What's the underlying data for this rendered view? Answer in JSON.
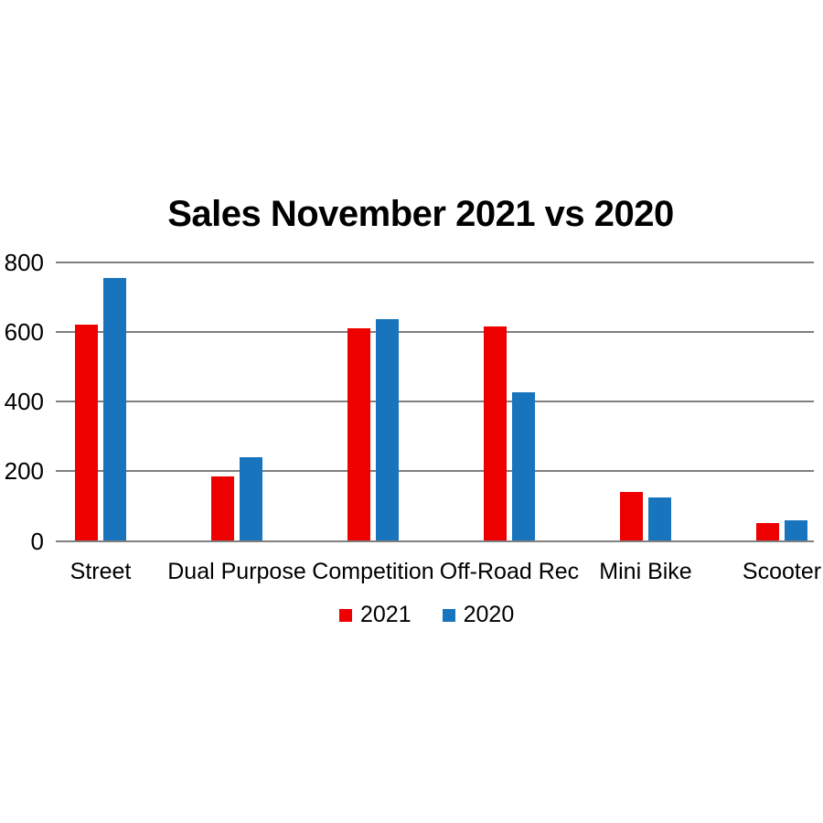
{
  "chart_data": {
    "type": "bar",
    "title": "Sales November 2021 vs 2020",
    "categories": [
      "Street",
      "Dual Purpose",
      "Competition",
      "Off-Road Rec",
      "Mini Bike",
      "Scooter"
    ],
    "series": [
      {
        "name": "2021",
        "color": "#ee0000",
        "values": [
          620,
          185,
          610,
          615,
          140,
          50
        ]
      },
      {
        "name": "2020",
        "color": "#1874bc",
        "values": [
          755,
          240,
          635,
          425,
          125,
          60
        ]
      }
    ],
    "xlabel": "",
    "ylabel": "",
    "ylim": [
      0,
      800
    ],
    "yticks": [
      0,
      200,
      400,
      600,
      800
    ],
    "grid": "horizontal",
    "gridline_color": "#7f7f7f",
    "text_color": "#000000",
    "background_color": "#ffffff",
    "legend_position": "bottom-center"
  }
}
